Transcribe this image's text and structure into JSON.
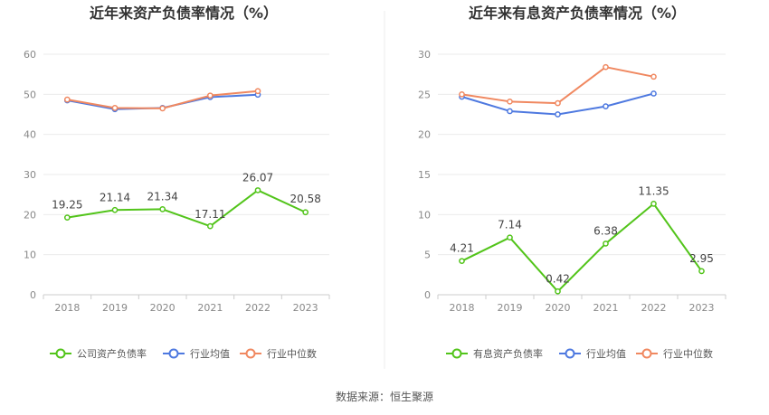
{
  "source_label": "数据来源：恒生聚源",
  "chart_data": [
    {
      "type": "line",
      "title": "近年来资产负债率情况（%）",
      "categories": [
        "2018",
        "2019",
        "2020",
        "2021",
        "2022",
        "2023"
      ],
      "ylim": [
        0,
        60
      ],
      "yticks": [
        0,
        10,
        20,
        30,
        40,
        50,
        60
      ],
      "grid": true,
      "legend_position": "bottom",
      "series": [
        {
          "name": "公司资产负债率",
          "color": "#52c41a",
          "values": [
            19.25,
            21.14,
            21.34,
            17.11,
            26.07,
            20.58
          ],
          "labels": [
            "19.25",
            "21.14",
            "21.34",
            "17.11",
            "26.07",
            "20.58"
          ]
        },
        {
          "name": "行业均值",
          "color": "#4e79e0",
          "values": [
            48.5,
            46.3,
            46.6,
            49.3,
            49.9,
            null
          ]
        },
        {
          "name": "行业中位数",
          "color": "#f08860",
          "values": [
            48.7,
            46.6,
            46.5,
            49.7,
            50.8,
            null
          ]
        }
      ]
    },
    {
      "type": "line",
      "title": "近年来有息资产负债率情况（%）",
      "categories": [
        "2018",
        "2019",
        "2020",
        "2021",
        "2022",
        "2023"
      ],
      "ylim": [
        0,
        30
      ],
      "yticks": [
        0,
        5,
        10,
        15,
        20,
        25,
        30
      ],
      "grid": true,
      "legend_position": "bottom",
      "series": [
        {
          "name": "有息资产负债率",
          "color": "#52c41a",
          "values": [
            4.21,
            7.14,
            0.42,
            6.38,
            11.35,
            2.95
          ],
          "labels": [
            "4.21",
            "7.14",
            "0.42",
            "6.38",
            "11.35",
            "2.95"
          ]
        },
        {
          "name": "行业均值",
          "color": "#4e79e0",
          "values": [
            24.7,
            22.9,
            22.5,
            23.5,
            25.1,
            null
          ]
        },
        {
          "name": "行业中位数",
          "color": "#f08860",
          "values": [
            25.0,
            24.1,
            23.9,
            28.4,
            27.2,
            null
          ]
        }
      ]
    }
  ]
}
